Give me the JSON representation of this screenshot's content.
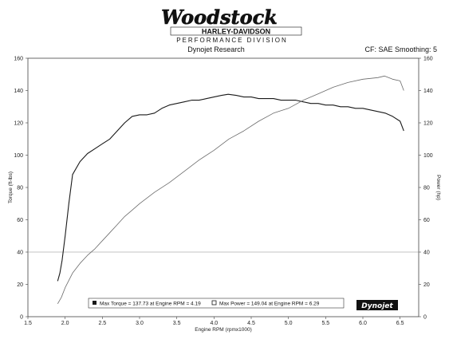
{
  "header": {
    "logo_word": "Woodstock",
    "logo_brand": "HARLEY-DAVIDSON",
    "logo_division": "PERFORMANCE DIVISION",
    "subtitle": "Dynojet Research",
    "correction": "CF: SAE Smoothing: 5"
  },
  "watermark": "Dynojet",
  "chart_data": {
    "type": "line",
    "xlabel": "Engine RPM (rpmx1000)",
    "ylabel_left": "Torque (ft-lbs)",
    "ylabel_right": "Power (hp)",
    "xlim": [
      1.5,
      6.75
    ],
    "ylim_left": [
      0,
      160
    ],
    "ylim_right": [
      0,
      160
    ],
    "x_ticks": [
      1.5,
      2.0,
      2.5,
      3.0,
      3.5,
      4.0,
      4.5,
      5.0,
      5.5,
      6.0,
      6.5
    ],
    "x_tick_labels": [
      "1.5",
      "2.0",
      "2.5",
      "3.0",
      "3.5",
      "4.0",
      "4.5",
      "5.0",
      "5.5",
      "6.0",
      "6.5"
    ],
    "y_left_ticks": [
      0,
      20,
      40,
      60,
      80,
      100,
      120,
      140,
      160
    ],
    "y_left_tick_labels": [
      "0",
      "20",
      "40",
      "60",
      "80",
      "100",
      "120",
      "140",
      "160"
    ],
    "y_right_ticks": [
      0,
      20,
      40,
      60,
      80,
      100,
      120,
      140,
      160
    ],
    "y_right_tick_labels": [
      "0",
      "20",
      "40",
      "60",
      "80",
      "100",
      "120",
      "140",
      "160"
    ],
    "reference_lines_left": [
      40
    ],
    "grid": false,
    "series": [
      {
        "key": "torque",
        "axis": "left",
        "color": "#1a1a1a",
        "x": [
          1.9,
          1.93,
          1.96,
          2.0,
          2.05,
          2.1,
          2.2,
          2.3,
          2.4,
          2.5,
          2.6,
          2.7,
          2.8,
          2.9,
          3.0,
          3.1,
          3.2,
          3.3,
          3.4,
          3.5,
          3.6,
          3.7,
          3.8,
          3.9,
          4.0,
          4.1,
          4.19,
          4.3,
          4.4,
          4.5,
          4.6,
          4.7,
          4.8,
          4.9,
          5.0,
          5.1,
          5.2,
          5.3,
          5.4,
          5.5,
          5.6,
          5.7,
          5.8,
          5.9,
          6.0,
          6.1,
          6.2,
          6.3,
          6.4,
          6.5,
          6.55
        ],
        "values": [
          22,
          27,
          35,
          50,
          70,
          88,
          96,
          101,
          104,
          107,
          110,
          115,
          120,
          124,
          125,
          125,
          126,
          129,
          131,
          132,
          133,
          134,
          134,
          135,
          136,
          137,
          137.7,
          137,
          136,
          136,
          135,
          135,
          135,
          134,
          134,
          134,
          133,
          132,
          132,
          131,
          131,
          130,
          130,
          129,
          129,
          128,
          127,
          126,
          124,
          121,
          115
        ]
      },
      {
        "key": "power",
        "axis": "right",
        "color": "#6a6a6a",
        "x": [
          1.9,
          1.95,
          2.0,
          2.1,
          2.2,
          2.3,
          2.4,
          2.5,
          2.6,
          2.7,
          2.8,
          2.9,
          3.0,
          3.2,
          3.4,
          3.6,
          3.8,
          4.0,
          4.2,
          4.4,
          4.6,
          4.8,
          5.0,
          5.2,
          5.4,
          5.6,
          5.8,
          6.0,
          6.2,
          6.29,
          6.4,
          6.5,
          6.55
        ],
        "values": [
          8,
          12,
          18,
          27,
          33,
          38,
          42,
          47,
          52,
          57,
          62,
          66,
          70,
          77,
          83,
          90,
          97,
          103,
          110,
          115,
          121,
          126,
          129,
          134,
          138,
          142,
          145,
          147,
          148,
          149,
          147,
          146,
          140
        ]
      }
    ],
    "legend": [
      {
        "key": "torque",
        "label": "Max Torque = 137.73 at Engine RPM = 4.19"
      },
      {
        "key": "power",
        "label": "Max Power = 149.04 at Engine RPM = 6.29"
      }
    ]
  }
}
